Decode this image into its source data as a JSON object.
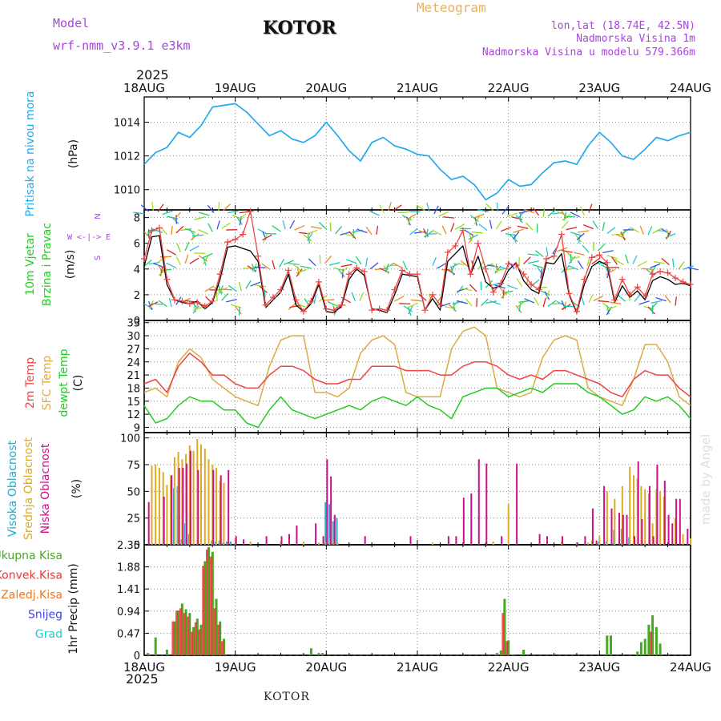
{
  "header": {
    "model_label": "Model",
    "model_name": "wrf-nmm_v3.9.1  e3km",
    "station": "KOTOR",
    "title": "Meteogram",
    "lonlat": "lon,lat (18.74E, 42.5N)",
    "elevation": "Nadmorska Visina 1m",
    "elevation_model": "Nadmorska Visina u modelu 579.366m",
    "year_top": "2025",
    "year_bottom": "2025",
    "footer_station": "KOTOR",
    "watermark": "made by Angel"
  },
  "colors": {
    "pressure": "#22aaee",
    "wind_speed": "#000000",
    "temp2m": "#ee4444",
    "sfc_temp": "#ddaa44",
    "dewpoint": "#22cc22",
    "cloud_high": "#22aacc",
    "cloud_mid": "#ddaa22",
    "cloud_low": "#cc1188",
    "precip_total": "#44aa22",
    "precip_conv": "#ee3333",
    "precip_frozen": "#ee7722",
    "snow": "#4444dd",
    "graupel": "#22cccc",
    "purple": "#aa44dd",
    "gold": "#e8b060"
  },
  "chart_data": [
    {
      "type": "line",
      "id": "pressure",
      "ylabel_lines": [
        "Pritisak na nivou mora"
      ],
      "unit": "(hPa)",
      "ylim": [
        1008.8,
        1015.5
      ],
      "yticks": [
        1010,
        1012,
        1014
      ],
      "x_hours": [
        0,
        3,
        6,
        9,
        12,
        15,
        18,
        21,
        24,
        27,
        30,
        33,
        36,
        39,
        42,
        45,
        48,
        51,
        54,
        57,
        60,
        63,
        66,
        69,
        72,
        75,
        78,
        81,
        84,
        87,
        90,
        93,
        96,
        99,
        102,
        105,
        108,
        111,
        114,
        117,
        120,
        123,
        126,
        129,
        132,
        135,
        138,
        141,
        144
      ],
      "series": [
        {
          "name": "Pritisak",
          "values": [
            1011.5,
            1012.2,
            1012.5,
            1013.4,
            1013.1,
            1013.8,
            1014.9,
            1015.0,
            1015.1,
            1014.6,
            1013.9,
            1013.2,
            1013.5,
            1013.0,
            1012.8,
            1013.2,
            1014.0,
            1013.2,
            1012.3,
            1011.7,
            1012.8,
            1013.1,
            1012.6,
            1012.4,
            1012.1,
            1012.0,
            1011.2,
            1010.6,
            1010.8,
            1010.3,
            1009.4,
            1009.8,
            1010.6,
            1010.2,
            1010.3,
            1011.0,
            1011.6,
            1011.7,
            1011.5,
            1012.6,
            1013.4,
            1012.8,
            1012.0,
            1011.8,
            1012.4,
            1013.1,
            1012.9,
            1013.2,
            1013.4
          ]
        }
      ]
    },
    {
      "type": "line",
      "id": "wind",
      "ylabel_lines": [
        "10m Vjetar",
        "Brzina i Pravac"
      ],
      "unit": "(m/s)",
      "compass": "N",
      "compass_arrows": "W  <-|->  E",
      "compass_south": "S",
      "ylim": [
        0,
        8.6
      ],
      "yticks": [
        0,
        2,
        4,
        6,
        8
      ],
      "x_hours": [
        0,
        2,
        4,
        6,
        8,
        10,
        12,
        14,
        16,
        18,
        20,
        22,
        24,
        26,
        28,
        30,
        32,
        34,
        36,
        38,
        40,
        42,
        44,
        46,
        48,
        50,
        52,
        54,
        56,
        58,
        60,
        62,
        64,
        66,
        68,
        70,
        72,
        74,
        76,
        78,
        80,
        82,
        84,
        86,
        88,
        90,
        92,
        94,
        96,
        98,
        100,
        102,
        104,
        106,
        108,
        110,
        112,
        114,
        116,
        118,
        120,
        122,
        124,
        126,
        128,
        130,
        132,
        134,
        136,
        138,
        140,
        142,
        144
      ],
      "series": [
        {
          "name": "Brzina",
          "values": [
            4.2,
            6.5,
            6.6,
            2.8,
            1.6,
            1.4,
            1.3,
            1.5,
            0.9,
            1.4,
            3.2,
            5.7,
            5.8,
            5.6,
            5.4,
            4.6,
            1.0,
            1.6,
            2.2,
            3.6,
            1.2,
            0.7,
            1.3,
            2.8,
            0.7,
            0.6,
            1.1,
            3.2,
            4.0,
            3.5,
            0.9,
            0.8,
            0.6,
            2.0,
            3.6,
            3.5,
            3.4,
            0.8,
            1.7,
            0.8,
            4.6,
            5.2,
            5.8,
            3.6,
            5.0,
            3.0,
            2.5,
            2.7,
            3.9,
            4.5,
            3.1,
            2.4,
            2.1,
            4.5,
            4.4,
            5.2,
            2.0,
            0.6,
            2.8,
            4.2,
            4.6,
            4.3,
            1.4,
            2.7,
            1.8,
            2.3,
            1.6,
            3.1,
            3.4,
            3.2,
            2.8,
            2.9,
            2.7
          ]
        },
        {
          "name": "Udari",
          "values": [
            4.8,
            7.0,
            7.2,
            3.2,
            1.6,
            1.5,
            1.3,
            1.4,
            1.1,
            1.5,
            3.6,
            6.1,
            6.3,
            6.7,
            8.5,
            5.0,
            1.2,
            1.8,
            2.4,
            3.9,
            1.6,
            0.7,
            1.5,
            3.0,
            0.9,
            0.8,
            1.2,
            3.6,
            4.1,
            3.8,
            0.8,
            0.9,
            0.8,
            2.4,
            3.9,
            3.6,
            3.6,
            0.8,
            2.0,
            1.2,
            5.3,
            5.8,
            7.0,
            3.6,
            6.0,
            4.0,
            2.2,
            2.9,
            4.4,
            4.3,
            3.6,
            2.8,
            2.4,
            4.8,
            5.0,
            6.7,
            2.1,
            0.7,
            3.2,
            4.9,
            5.1,
            4.5,
            1.6,
            3.2,
            2.0,
            2.6,
            1.9,
            3.6,
            3.8,
            3.7,
            3.3,
            3.0,
            2.8
          ]
        }
      ]
    },
    {
      "type": "line",
      "id": "temperature",
      "ylabel_lines": [
        "2m Temp",
        "SFC Temp",
        "dewpt Temp"
      ],
      "unit": "(C)",
      "ylim": [
        7.8,
        33.5
      ],
      "yticks": [
        9,
        12,
        15,
        18,
        21,
        24,
        27,
        30,
        33
      ],
      "x_hours": [
        0,
        3,
        6,
        9,
        12,
        15,
        18,
        21,
        24,
        27,
        30,
        33,
        36,
        39,
        42,
        45,
        48,
        51,
        54,
        57,
        60,
        63,
        66,
        69,
        72,
        75,
        78,
        81,
        84,
        87,
        90,
        93,
        96,
        99,
        102,
        105,
        108,
        111,
        114,
        117,
        120,
        123,
        126,
        129,
        132,
        135,
        138,
        141,
        144
      ],
      "series": [
        {
          "name": "2m Temp",
          "values": [
            19,
            20,
            17,
            23,
            26,
            24,
            21,
            21,
            19,
            18,
            18,
            21,
            23,
            23,
            22,
            20,
            19,
            19,
            20,
            20,
            23,
            23,
            23,
            22,
            22,
            22,
            21,
            21,
            23,
            24,
            24,
            23,
            21,
            20,
            21,
            20,
            22,
            22,
            21,
            20,
            19,
            17,
            16,
            20,
            22,
            21,
            21,
            18,
            16
          ]
        },
        {
          "name": "SFC Temp",
          "values": [
            17,
            18,
            16,
            24,
            27,
            25,
            20,
            18,
            16,
            15,
            14,
            23,
            29,
            30,
            30,
            17,
            17,
            16,
            18,
            26,
            29,
            30,
            28,
            17,
            16,
            16,
            16,
            27,
            31,
            32,
            30,
            18,
            17,
            16,
            17,
            25,
            29,
            30,
            29,
            18,
            16,
            15,
            14,
            20,
            28,
            28,
            24,
            16,
            14
          ]
        },
        {
          "name": "dewpt Temp",
          "values": [
            14,
            10,
            11,
            14,
            16,
            15,
            15,
            13,
            13,
            10,
            9,
            13,
            16,
            13,
            12,
            11,
            12,
            13,
            14,
            13,
            15,
            16,
            15,
            14,
            16,
            14,
            13,
            11,
            16,
            17,
            18,
            18,
            16,
            17,
            18,
            17,
            19,
            19,
            19,
            17,
            16,
            14,
            12,
            13,
            16,
            15,
            16,
            14,
            11
          ]
        }
      ]
    },
    {
      "type": "bar",
      "id": "clouds",
      "ylabel_lines": [
        "Visoka Oblacnost",
        "Srednja Oblacnost",
        "Niska Oblacnost"
      ],
      "unit": "(%)",
      "ylim": [
        0,
        105
      ],
      "yticks": [
        0,
        25,
        50,
        75,
        100
      ],
      "series": [
        {
          "name": "Visoka Oblacnost",
          "x_hours": [
            8,
            9,
            10,
            11,
            12,
            18,
            19,
            20,
            21,
            22,
            23,
            48,
            49,
            50,
            51,
            120,
            122,
            124,
            126,
            128
          ],
          "values": [
            53,
            55,
            5,
            20,
            10,
            4,
            3,
            4,
            2,
            3,
            3,
            40,
            38,
            22,
            25,
            3,
            3,
            14,
            15,
            7
          ]
        },
        {
          "name": "Srednja Oblacnost",
          "x_hours": [
            2,
            3,
            4,
            5,
            6,
            7,
            8,
            9,
            10,
            11,
            12,
            13,
            14,
            15,
            16,
            17,
            18,
            19,
            20,
            21,
            24,
            28,
            36,
            42,
            46,
            48,
            49,
            50,
            51,
            76,
            92,
            96,
            110,
            114,
            117,
            118,
            120,
            122,
            124,
            126,
            128,
            129,
            130,
            131,
            132,
            133,
            134,
            135,
            136,
            137,
            140,
            142,
            144
          ],
          "values": [
            74,
            75,
            72,
            68,
            56,
            65,
            82,
            87,
            80,
            85,
            93,
            88,
            99,
            94,
            90,
            80,
            75,
            72,
            60,
            58,
            6,
            3,
            3,
            3,
            2,
            3,
            6,
            4,
            2,
            2,
            3,
            38,
            3,
            2,
            2,
            4,
            8,
            50,
            43,
            55,
            73,
            65,
            62,
            55,
            52,
            48,
            20,
            52,
            50,
            45,
            25,
            10,
            6
          ]
        },
        {
          "name": "Niska Oblacnost",
          "x_hours": [
            1,
            5,
            7,
            9,
            10,
            11,
            12,
            14,
            18,
            20,
            22,
            24,
            26,
            32,
            36,
            38,
            40,
            45,
            47,
            48,
            49,
            50,
            58,
            70,
            80,
            82,
            84,
            86,
            88,
            90,
            94,
            98,
            104,
            106,
            110,
            114,
            116,
            118,
            119,
            121,
            123,
            125,
            126,
            127,
            129,
            130,
            131,
            133,
            134,
            135,
            137,
            138,
            139,
            140,
            141,
            143
          ],
          "values": [
            40,
            45,
            65,
            72,
            72,
            76,
            88,
            70,
            70,
            65,
            70,
            8,
            5,
            8,
            8,
            10,
            18,
            20,
            8,
            80,
            64,
            28,
            8,
            8,
            8,
            8,
            44,
            48,
            80,
            76,
            8,
            76,
            10,
            8,
            8,
            2,
            8,
            34,
            4,
            55,
            34,
            30,
            28,
            28,
            8,
            78,
            24,
            55,
            8,
            75,
            60,
            28,
            20,
            43,
            43,
            15
          ]
        }
      ]
    },
    {
      "type": "bar",
      "id": "precipitation",
      "ylabel_lines": [
        "Ukupna Kisa",
        "Konvek.Kisa",
        "Zaledj.Kisa",
        "Snijeg",
        "Grad"
      ],
      "unit_lines": [
        "1hr Precip",
        "(mm)"
      ],
      "ylim": [
        0,
        2.35
      ],
      "yticks": [
        0,
        0.47,
        0.94,
        1.41,
        1.88,
        2.35
      ],
      "ytick_labels": [
        "0",
        "0.47",
        "0.94",
        "1.41",
        "1.88",
        "2.35"
      ],
      "series": [
        {
          "name": "Ukupna Kisa",
          "x_hours": [
            1,
            3,
            6,
            8,
            9,
            10,
            11,
            12,
            13,
            14,
            15,
            16,
            17,
            18,
            19,
            20,
            21,
            44,
            46,
            47,
            93,
            94,
            95,
            96,
            97,
            100,
            122,
            123,
            130,
            131,
            132,
            133,
            134,
            135,
            136
          ],
          "values": [
            0.05,
            0.38,
            0.12,
            0.72,
            0.95,
            1.1,
            0.98,
            0.9,
            0.6,
            0.78,
            0.65,
            2.0,
            2.3,
            2.2,
            1.2,
            0.72,
            0.35,
            0.15,
            0.05,
            0.05,
            0.05,
            0.1,
            1.2,
            0.32,
            0.02,
            0.12,
            0.42,
            0.42,
            0.08,
            0.28,
            0.35,
            0.65,
            0.85,
            0.6,
            0.25
          ]
        },
        {
          "name": "Konvek.Kisa",
          "x_hours": [
            8,
            9,
            10,
            11,
            12,
            13,
            14,
            15,
            16,
            17,
            18,
            19,
            20,
            21,
            95,
            96,
            134
          ],
          "values": [
            0.72,
            0.95,
            1.0,
            0.9,
            0.82,
            0.5,
            0.7,
            0.55,
            1.9,
            2.25,
            2.1,
            1.0,
            0.65,
            0.3,
            0.9,
            0.3,
            0.5
          ]
        }
      ]
    }
  ],
  "x_axis": {
    "start_hour": 0,
    "end_hour": 144,
    "ticks": [
      {
        "hour": 0,
        "label": "18AUG"
      },
      {
        "hour": 24,
        "label": "19AUG"
      },
      {
        "hour": 48,
        "label": "20AUG"
      },
      {
        "hour": 72,
        "label": "21AUG"
      },
      {
        "hour": 96,
        "label": "22AUG"
      },
      {
        "hour": 120,
        "label": "23AUG"
      },
      {
        "hour": 144,
        "label": "24AUG"
      }
    ]
  }
}
